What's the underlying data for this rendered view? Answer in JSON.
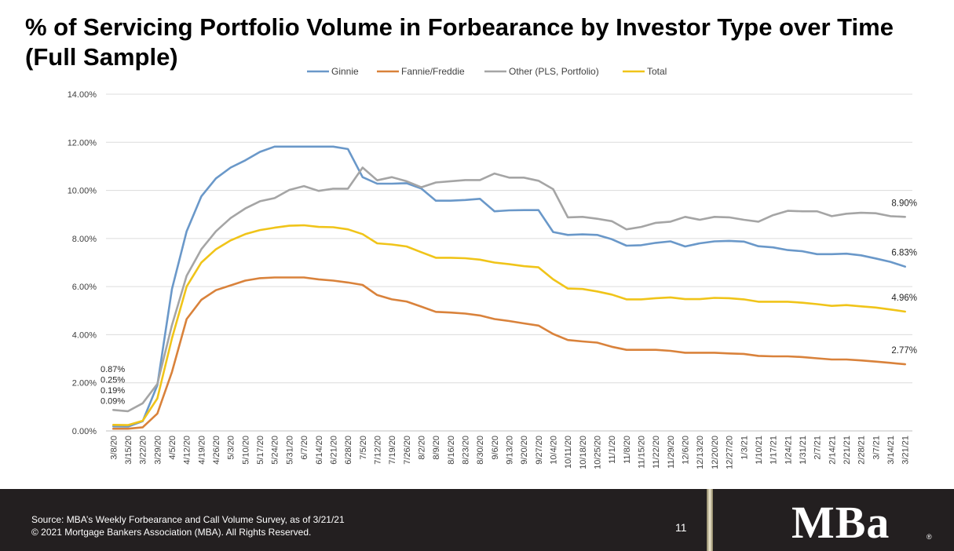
{
  "slide": {
    "title_line1": "% of Servicing Portfolio Volume in Forbearance by Investor Type over Time",
    "title_line2": "(Full Sample)"
  },
  "footer": {
    "source": "Source: MBA’s Weekly Forbearance and Call Volume Survey, as of 3/21/21",
    "copyright": "© 2021 Mortgage Bankers Association (MBA). All Rights Reserved.",
    "page_number": "11",
    "logo_text": "MBa",
    "registered_mark": "®"
  },
  "chart_data": {
    "type": "line",
    "title": "",
    "xlabel": "",
    "ylabel": "",
    "ylim": [
      0,
      14
    ],
    "yticks": [
      0,
      2,
      4,
      6,
      8,
      10,
      12,
      14
    ],
    "ytick_labels": [
      "0.00%",
      "2.00%",
      "4.00%",
      "6.00%",
      "8.00%",
      "10.00%",
      "12.00%",
      "14.00%"
    ],
    "grid": true,
    "legend_position": "top",
    "x": [
      "3/8/20",
      "3/15/20",
      "3/22/20",
      "3/29/20",
      "4/5/20",
      "4/12/20",
      "4/19/20",
      "4/26/20",
      "5/3/20",
      "5/10/20",
      "5/17/20",
      "5/24/20",
      "5/31/20",
      "6/7/20",
      "6/14/20",
      "6/21/20",
      "6/28/20",
      "7/5/20",
      "7/12/20",
      "7/19/20",
      "7/26/20",
      "8/2/20",
      "8/9/20",
      "8/16/20",
      "8/23/20",
      "8/30/20",
      "9/6/20",
      "9/13/20",
      "9/20/20",
      "9/27/20",
      "10/4/20",
      "10/11/20",
      "10/18/20",
      "10/25/20",
      "11/1/20",
      "11/8/20",
      "11/15/20",
      "11/22/20",
      "11/29/20",
      "12/6/20",
      "12/13/20",
      "12/20/20",
      "12/27/20",
      "1/3/21",
      "1/10/21",
      "1/17/21",
      "1/24/21",
      "1/31/21",
      "2/7/21",
      "2/14/21",
      "2/21/21",
      "2/28/21",
      "3/7/21",
      "3/14/21",
      "3/21/21"
    ],
    "series": [
      {
        "name": "Ginnie",
        "color": "#6a98c9",
        "values": [
          0.19,
          0.18,
          0.4,
          1.9,
          5.9,
          8.3,
          9.75,
          10.5,
          10.95,
          11.25,
          11.6,
          11.82,
          11.82,
          11.82,
          11.82,
          11.82,
          11.72,
          10.55,
          10.28,
          10.28,
          10.3,
          10.08,
          9.57,
          9.57,
          9.6,
          9.65,
          9.13,
          9.17,
          9.18,
          9.18,
          8.27,
          8.15,
          8.17,
          8.15,
          7.97,
          7.7,
          7.72,
          7.82,
          7.88,
          7.67,
          7.8,
          7.88,
          7.9,
          7.87,
          7.68,
          7.63,
          7.52,
          7.47,
          7.35,
          7.35,
          7.37,
          7.3,
          7.17,
          7.03,
          6.83
        ]
      },
      {
        "name": "Fannie/Freddie",
        "color": "#d9823b",
        "values": [
          0.09,
          0.09,
          0.15,
          0.72,
          2.45,
          4.65,
          5.45,
          5.85,
          6.05,
          6.25,
          6.35,
          6.38,
          6.38,
          6.38,
          6.3,
          6.25,
          6.17,
          6.07,
          5.65,
          5.47,
          5.38,
          5.17,
          4.95,
          4.92,
          4.88,
          4.8,
          4.65,
          4.57,
          4.47,
          4.38,
          4.03,
          3.78,
          3.72,
          3.67,
          3.5,
          3.37,
          3.37,
          3.37,
          3.33,
          3.25,
          3.25,
          3.25,
          3.22,
          3.2,
          3.12,
          3.1,
          3.1,
          3.07,
          3.02,
          2.97,
          2.97,
          2.93,
          2.88,
          2.83,
          2.77
        ]
      },
      {
        "name": "Other (PLS, Portfolio)",
        "color": "#a5a5a5",
        "values": [
          0.87,
          0.82,
          1.15,
          1.95,
          4.4,
          6.45,
          7.55,
          8.3,
          8.85,
          9.25,
          9.55,
          9.68,
          10.02,
          10.18,
          9.98,
          10.07,
          10.07,
          10.95,
          10.42,
          10.55,
          10.38,
          10.13,
          10.33,
          10.38,
          10.43,
          10.43,
          10.7,
          10.53,
          10.53,
          10.4,
          10.05,
          8.88,
          8.9,
          8.82,
          8.72,
          8.38,
          8.48,
          8.65,
          8.7,
          8.9,
          8.78,
          8.9,
          8.88,
          8.78,
          8.7,
          8.97,
          9.15,
          9.13,
          9.13,
          8.93,
          9.03,
          9.07,
          9.05,
          8.93,
          8.9
        ]
      },
      {
        "name": "Total",
        "color": "#f0c419",
        "values": [
          0.25,
          0.24,
          0.42,
          1.35,
          3.85,
          6.0,
          7.0,
          7.55,
          7.92,
          8.18,
          8.35,
          8.45,
          8.53,
          8.55,
          8.48,
          8.47,
          8.38,
          8.18,
          7.8,
          7.75,
          7.67,
          7.43,
          7.2,
          7.2,
          7.18,
          7.12,
          7.0,
          6.93,
          6.85,
          6.8,
          6.3,
          5.92,
          5.9,
          5.8,
          5.67,
          5.47,
          5.47,
          5.52,
          5.55,
          5.48,
          5.48,
          5.53,
          5.52,
          5.47,
          5.37,
          5.37,
          5.37,
          5.33,
          5.27,
          5.2,
          5.23,
          5.18,
          5.13,
          5.05,
          4.96
        ]
      }
    ],
    "annotations": [
      {
        "text": "0.87%",
        "series": "Other (PLS, Portfolio)",
        "index": 0,
        "side": "left"
      },
      {
        "text": "0.25%",
        "series": "Total",
        "index": 0,
        "side": "left"
      },
      {
        "text": "0.19%",
        "series": "Ginnie",
        "index": 0,
        "side": "left"
      },
      {
        "text": "0.09%",
        "series": "Fannie/Freddie",
        "index": 0,
        "side": "left"
      },
      {
        "text": "8.90%",
        "series": "Other (PLS, Portfolio)",
        "index": 54,
        "side": "right"
      },
      {
        "text": "6.83%",
        "series": "Ginnie",
        "index": 54,
        "side": "right"
      },
      {
        "text": "4.96%",
        "series": "Total",
        "index": 54,
        "side": "right"
      },
      {
        "text": "2.77%",
        "series": "Fannie/Freddie",
        "index": 54,
        "side": "right"
      }
    ]
  }
}
